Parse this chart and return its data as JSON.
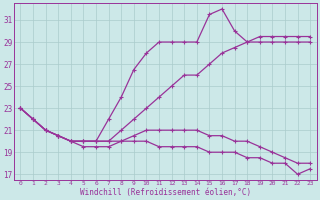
{
  "xlabel": "Windchill (Refroidissement éolien,°C)",
  "bg_color": "#cce8e8",
  "grid_color": "#aacccc",
  "line_color": "#993399",
  "xlim": [
    -0.5,
    23.5
  ],
  "ylim": [
    16.5,
    32.5
  ],
  "yticks": [
    17,
    19,
    21,
    23,
    25,
    27,
    29,
    31
  ],
  "xticks": [
    0,
    1,
    2,
    3,
    4,
    5,
    6,
    7,
    8,
    9,
    10,
    11,
    12,
    13,
    14,
    15,
    16,
    17,
    18,
    19,
    20,
    21,
    22,
    23
  ],
  "hours": [
    0,
    1,
    2,
    3,
    4,
    5,
    6,
    7,
    8,
    9,
    10,
    11,
    12,
    13,
    14,
    15,
    16,
    17,
    18,
    19,
    20,
    21,
    22,
    23
  ],
  "line1": [
    23,
    22,
    21,
    20.5,
    20,
    20,
    20,
    22,
    24,
    26.5,
    28,
    29,
    29,
    29,
    29,
    31.5,
    32,
    30,
    29,
    29,
    29,
    29,
    29,
    29
  ],
  "line2": [
    23,
    22,
    21,
    20.5,
    20,
    20,
    20,
    20,
    21,
    22,
    23,
    24,
    25,
    26,
    26,
    27,
    28,
    28.5,
    29,
    29.5,
    29.5,
    29.5,
    29.5,
    29.5
  ],
  "line3": [
    23,
    22,
    21,
    20.5,
    20,
    20,
    20,
    20,
    20,
    20.5,
    21,
    21,
    21,
    21,
    21,
    20.5,
    20.5,
    20,
    20,
    19.5,
    19,
    18.5,
    18,
    18
  ],
  "line4": [
    23,
    22,
    21,
    20.5,
    20,
    19.5,
    19.5,
    19.5,
    20,
    20,
    20,
    19.5,
    19.5,
    19.5,
    19.5,
    19,
    19,
    19,
    18.5,
    18.5,
    18,
    18,
    17,
    17.5
  ]
}
